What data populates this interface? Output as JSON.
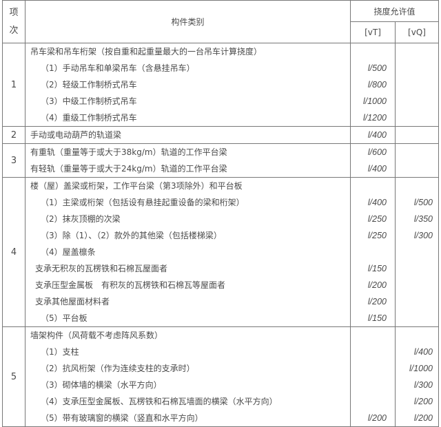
{
  "header": {
    "item_col_line1": "项",
    "item_col_line2": "次",
    "category": "构件类别",
    "allowable": "挠度允许值",
    "vt": "[vT]",
    "vq": "[vQ]"
  },
  "groups": [
    {
      "index": "1",
      "lines": [
        {
          "text": "吊车梁和吊车桁架（按自重和起重量最大的一台吊车计算挠度）",
          "level": 0,
          "vt": "",
          "vq": ""
        },
        {
          "text": "（1）手动吊车和单梁吊车（含悬挂吊车）",
          "level": 1,
          "vt": "l/500",
          "vq": ""
        },
        {
          "text": "（2）轻级工作制桥式吊车",
          "level": 1,
          "vt": "l/800",
          "vq": ""
        },
        {
          "text": "（3）中级工作制桥式吊车",
          "level": 1,
          "vt": "l/1000",
          "vq": ""
        },
        {
          "text": "（4）重级工作制桥式吊车",
          "level": 1,
          "vt": "l/1200",
          "vq": ""
        }
      ]
    },
    {
      "index": "2",
      "lines": [
        {
          "text": "手动或电动葫芦的轨道梁",
          "level": 0,
          "vt": "l/400",
          "vq": ""
        }
      ]
    },
    {
      "index": "3",
      "lines": [
        {
          "text": "有重轨（重量等于或大于38kg/m）轨道的工作平台梁",
          "level": 0,
          "vt": "l/600",
          "vq": ""
        },
        {
          "text": "有轻轨（重量等于或大于24kg/m）轨道的工作平台梁",
          "level": 0,
          "vt": "l/400",
          "vq": ""
        }
      ]
    },
    {
      "index": "4",
      "lines": [
        {
          "text": "楼（屋）盖梁或桁架，工作平台梁（第3项除外）和平台板",
          "level": 0,
          "vt": "",
          "vq": ""
        },
        {
          "text": "（1）主梁或桁架（包括设有悬挂起重设备的梁和桁架）",
          "level": 1,
          "vt": "l/400",
          "vq": "l/500"
        },
        {
          "text": "（2）抹灰顶棚的次梁",
          "level": 1,
          "vt": "l/250",
          "vq": "l/350"
        },
        {
          "text": "（3）除（1）、（2）款外的其他梁（包括楼梯梁）",
          "level": 1,
          "vt": "l/250",
          "vq": "l/300"
        },
        {
          "text": "（4）屋盖檩条",
          "level": 1,
          "vt": "",
          "vq": ""
        },
        {
          "text": "支承无积灰的瓦楞铁和石棉瓦屋面者",
          "level": 2,
          "vt": "l/150",
          "vq": ""
        },
        {
          "text": "支承压型金属板　有积灰的瓦楞铁和石棉瓦等屋面者",
          "level": 2,
          "vt": "l/200",
          "vq": ""
        },
        {
          "text": "支承其他屋面材料者",
          "level": 2,
          "vt": "l/200",
          "vq": ""
        },
        {
          "text": "（5）平台板",
          "level": 1,
          "vt": "l/150",
          "vq": ""
        }
      ]
    },
    {
      "index": "5",
      "lines": [
        {
          "text": "墙架构件（风荷载不考虑阵风系数）",
          "level": 0,
          "vt": "",
          "vq": ""
        },
        {
          "text": "（1）支柱",
          "level": 1,
          "vt": "",
          "vq": "l/400"
        },
        {
          "text": "（2）抗风桁架（作为连续支柱的支承时）",
          "level": 1,
          "vt": "",
          "vq": "l/1000"
        },
        {
          "text": "（3）砌体墙的横梁（水平方向）",
          "level": 1,
          "vt": "",
          "vq": "l/300"
        },
        {
          "text": "（4）支承压型金属板、瓦楞铁和石棉瓦墙面的横梁（水平方向）",
          "level": 1,
          "vt": "",
          "vq": "l/200"
        },
        {
          "text": "（5）带有玻璃窗的横梁（竖直和水平方向）",
          "level": 1,
          "vt": "l/200",
          "vq": "l/200"
        }
      ]
    }
  ]
}
